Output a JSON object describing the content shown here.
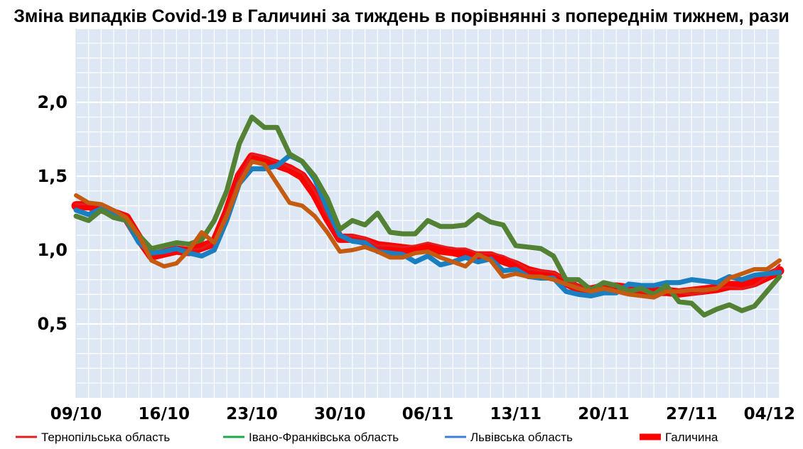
{
  "chart_data": {
    "type": "line",
    "title": "Зміна випадків Covid-19 в Галичині за тиждень в порівнянні з попереднім тижнем, рази",
    "xlabel": "",
    "ylabel": "",
    "ylim": [
      0.0,
      2.5
    ],
    "yticks": [
      0.5,
      1.0,
      1.5,
      2.0
    ],
    "ytick_labels": [
      "0,5",
      "1,0",
      "1,5",
      "2,0"
    ],
    "x_start": "09/10",
    "x_count": 57,
    "xticks": [
      0,
      7,
      14,
      21,
      28,
      35,
      42,
      49,
      56
    ],
    "xtick_labels": [
      "09/10",
      "16/10",
      "23/10",
      "30/10",
      "06/11",
      "13/11",
      "20/11",
      "27/11",
      "04/12"
    ],
    "grid": "on",
    "plot_background": "#dde8f4",
    "grid_color": "#ffffff",
    "legend_position": "bottom",
    "series": [
      {
        "name": "Галичина",
        "color": "#ff0000",
        "width": 13,
        "values": [
          1.3,
          1.3,
          1.28,
          1.25,
          1.22,
          1.08,
          0.96,
          0.98,
          1.0,
          0.99,
          1.02,
          1.05,
          1.25,
          1.5,
          1.63,
          1.61,
          1.58,
          1.55,
          1.5,
          1.38,
          1.22,
          1.08,
          1.08,
          1.06,
          1.03,
          1.02,
          1.01,
          1.0,
          1.02,
          1.0,
          0.99,
          0.97,
          0.96,
          0.96,
          0.93,
          0.9,
          0.86,
          0.84,
          0.83,
          0.78,
          0.74,
          0.73,
          0.75,
          0.75,
          0.74,
          0.73,
          0.72,
          0.72,
          0.71,
          0.72,
          0.73,
          0.74,
          0.76,
          0.76,
          0.78,
          0.82,
          0.86
        ]
      },
      {
        "name": "Тернопільська область",
        "color": "#e02020",
        "width": 3,
        "values": [
          1.31,
          1.31,
          1.3,
          1.27,
          1.23,
          1.08,
          0.97,
          0.99,
          1.01,
          1.0,
          1.01,
          1.06,
          1.27,
          1.49,
          1.65,
          1.63,
          1.6,
          1.56,
          1.52,
          1.4,
          1.23,
          1.09,
          1.1,
          1.08,
          1.03,
          1.03,
          1.02,
          1.03,
          1.05,
          1.03,
          1.01,
          1.01,
          0.98,
          0.98,
          0.96,
          0.92,
          0.87,
          0.86,
          0.85,
          0.8,
          0.76,
          0.71,
          0.74,
          0.75,
          0.74,
          0.72,
          0.71,
          0.73,
          0.71,
          0.7,
          0.71,
          0.74,
          0.75,
          0.74,
          0.76,
          0.82,
          0.9
        ]
      },
      {
        "name": "Львівська область",
        "color": "#1a7fc1",
        "width": 7,
        "values": [
          1.27,
          1.24,
          1.28,
          1.25,
          1.2,
          1.05,
          0.98,
          0.99,
          1.01,
          0.98,
          0.96,
          1.0,
          1.2,
          1.45,
          1.55,
          1.55,
          1.57,
          1.64,
          1.6,
          1.48,
          1.28,
          1.1,
          1.06,
          1.05,
          0.99,
          0.98,
          0.97,
          0.92,
          0.96,
          0.9,
          0.92,
          0.95,
          0.92,
          0.94,
          0.86,
          0.87,
          0.82,
          0.81,
          0.81,
          0.72,
          0.7,
          0.69,
          0.71,
          0.71,
          0.77,
          0.76,
          0.76,
          0.78,
          0.78,
          0.8,
          0.79,
          0.78,
          0.82,
          0.8,
          0.83,
          0.84,
          0.85
        ]
      },
      {
        "name": "Івано-Франківська область",
        "color": "#548235",
        "width": 7,
        "values": [
          1.23,
          1.2,
          1.27,
          1.22,
          1.2,
          1.1,
          1.01,
          1.03,
          1.05,
          1.04,
          1.07,
          1.2,
          1.4,
          1.72,
          1.9,
          1.83,
          1.83,
          1.65,
          1.6,
          1.5,
          1.35,
          1.14,
          1.2,
          1.17,
          1.25,
          1.12,
          1.11,
          1.11,
          1.2,
          1.16,
          1.16,
          1.17,
          1.24,
          1.19,
          1.17,
          1.03,
          1.02,
          1.01,
          0.96,
          0.8,
          0.8,
          0.73,
          0.78,
          0.76,
          0.72,
          0.74,
          0.7,
          0.76,
          0.65,
          0.64,
          0.56,
          0.6,
          0.63,
          0.59,
          0.62,
          0.72,
          0.82
        ]
      },
      {
        "name": "",
        "color": "#c55a11",
        "width": 6,
        "values": [
          1.37,
          1.32,
          1.31,
          1.27,
          1.22,
          1.1,
          0.93,
          0.89,
          0.91,
          1.0,
          1.12,
          1.05,
          1.23,
          1.45,
          1.6,
          1.58,
          1.45,
          1.32,
          1.3,
          1.23,
          1.12,
          0.99,
          1.0,
          1.02,
          0.99,
          0.95,
          0.95,
          0.98,
          0.99,
          0.95,
          0.92,
          0.89,
          0.97,
          0.93,
          0.82,
          0.84,
          0.82,
          0.82,
          0.8,
          0.77,
          0.74,
          0.72,
          0.74,
          0.72,
          0.7,
          0.69,
          0.68,
          0.72,
          0.72,
          0.73,
          0.73,
          0.74,
          0.81,
          0.84,
          0.87,
          0.87,
          0.93
        ]
      }
    ],
    "legend": [
      {
        "label": "Тернопільська область",
        "color": "#e02020",
        "width": 3
      },
      {
        "label": "Івано-Франківська область",
        "color": "#1fa84a",
        "width": 3
      },
      {
        "label": "Львівська область",
        "color": "#3f7fd9",
        "width": 3
      },
      {
        "label": "Галичина",
        "color": "#ff0000",
        "width": 9
      }
    ]
  }
}
